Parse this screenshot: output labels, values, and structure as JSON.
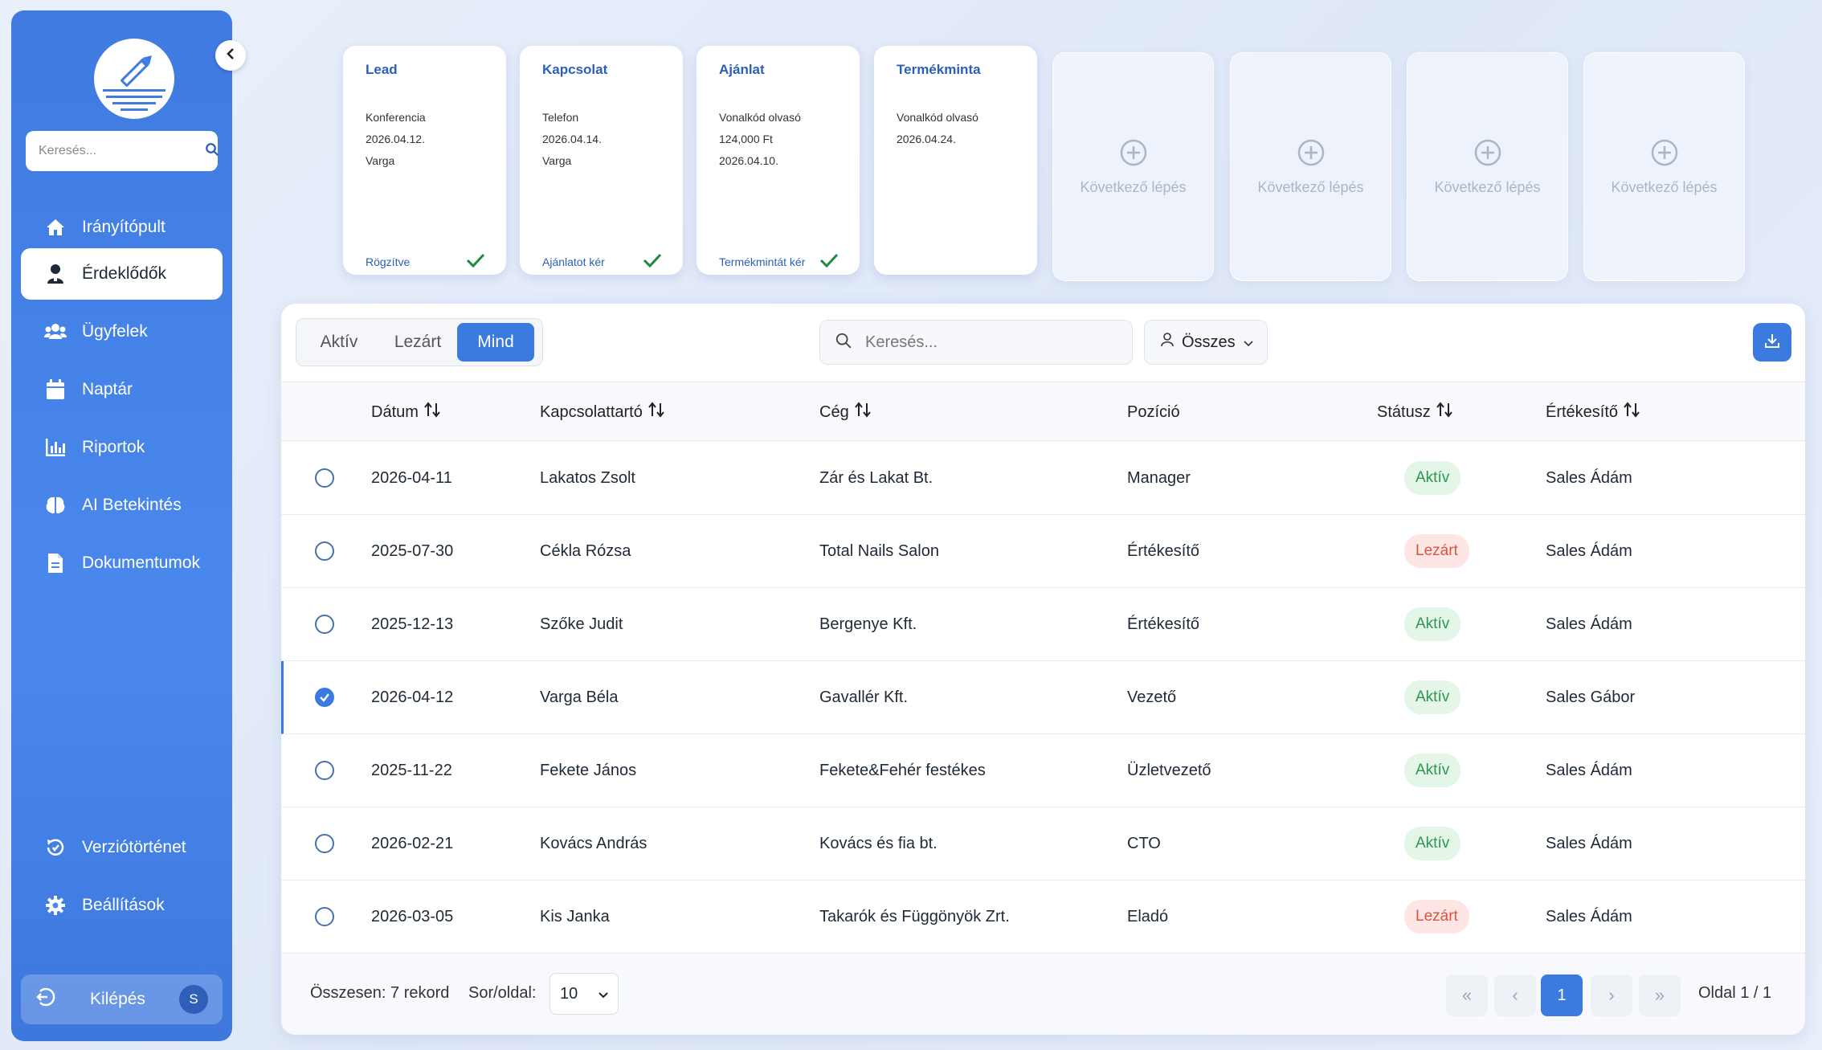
{
  "sidebar": {
    "search_placeholder": "Keresés...",
    "items": [
      {
        "label": "Irányítópult",
        "icon": "home-icon"
      },
      {
        "label": "Érdeklődők",
        "icon": "user-icon"
      },
      {
        "label": "Ügyfelek",
        "icon": "users-icon"
      },
      {
        "label": "Naptár",
        "icon": "calendar-icon"
      },
      {
        "label": "Riportok",
        "icon": "chart-icon"
      },
      {
        "label": "AI Betekintés",
        "icon": "brain-icon"
      },
      {
        "label": "Dokumentumok",
        "icon": "document-icon"
      }
    ],
    "bottom_items": [
      {
        "label": "Verziótörténet",
        "icon": "history-icon"
      },
      {
        "label": "Beállítások",
        "icon": "gear-icon"
      }
    ],
    "logout_label": "Kilépés",
    "avatar_initial": "S",
    "active_index": 1
  },
  "pipeline": {
    "stages": [
      {
        "title": "Lead",
        "lines": [
          "Konferencia",
          "2026.04.12.",
          "Varga"
        ],
        "footer": "Rögzítve",
        "done": true
      },
      {
        "title": "Kapcsolat",
        "lines": [
          "Telefon",
          "2026.04.14.",
          "Varga"
        ],
        "footer": "Ajánlatot kér",
        "done": true
      },
      {
        "title": "Ajánlat",
        "lines": [
          "Vonalkód olvasó",
          "124,000 Ft",
          "2026.04.10."
        ],
        "footer": "Termékmintát kér",
        "done": true
      },
      {
        "title": "Termékminta",
        "lines": [
          "Vonalkód olvasó",
          "2026.04.24."
        ],
        "footer": "",
        "done": false
      }
    ],
    "next_label": "Következő lépés"
  },
  "table": {
    "tabs": [
      "Aktív",
      "Lezárt",
      "Mind"
    ],
    "active_tab": "Mind",
    "search_placeholder": "Keresés...",
    "filter_label": "Összes",
    "columns": [
      "Dátum",
      "Kapcsolattartó",
      "Cég",
      "Pozíció",
      "Státusz",
      "Értékesítő"
    ],
    "rows": [
      {
        "date": "2026-04-11",
        "contact": "Lakatos Zsolt",
        "company": "Zár és Lakat Bt.",
        "position": "Manager",
        "status": "Aktív",
        "seller": "Sales Ádám",
        "selected": false
      },
      {
        "date": "2025-07-30",
        "contact": "Cékla Rózsa",
        "company": "Total Nails Salon",
        "position": "Értékesítő",
        "status": "Lezárt",
        "seller": "Sales Ádám",
        "selected": false
      },
      {
        "date": "2025-12-13",
        "contact": "Szőke Judit",
        "company": "Bergenye Kft.",
        "position": "Értékesítő",
        "status": "Aktív",
        "seller": "Sales Ádám",
        "selected": false
      },
      {
        "date": "2026-04-12",
        "contact": "Varga Béla",
        "company": "Gavallér Kft.",
        "position": "Vezető",
        "status": "Aktív",
        "seller": "Sales Gábor",
        "selected": true
      },
      {
        "date": "2025-11-22",
        "contact": "Fekete János",
        "company": "Fekete&Fehér festékes",
        "position": "Üzletvezető",
        "status": "Aktív",
        "seller": "Sales Ádám",
        "selected": false
      },
      {
        "date": "2026-02-21",
        "contact": "Kovács András",
        "company": "Kovács és fia bt.",
        "position": "CTO",
        "status": "Aktív",
        "seller": "Sales Ádám",
        "selected": false
      },
      {
        "date": "2026-03-05",
        "contact": "Kis Janka",
        "company": "Takarók és Függönyök Zrt.",
        "position": "Eladó",
        "status": "Lezárt",
        "seller": "Sales Ádám",
        "selected": false
      }
    ],
    "footer": {
      "total": "Összesen: 7 rekord",
      "per_page_label": "Sor/oldal:",
      "per_page_value": "10",
      "current_page": "1",
      "page_info": "Oldal 1 / 1"
    }
  },
  "colors": {
    "accent": "#3b7bdf",
    "sidebar": "#4a88ee",
    "status_active_bg": "#e3f6e8",
    "status_active_fg": "#2e9552",
    "status_closed_bg": "#fde6e3",
    "status_closed_fg": "#d9533f"
  }
}
